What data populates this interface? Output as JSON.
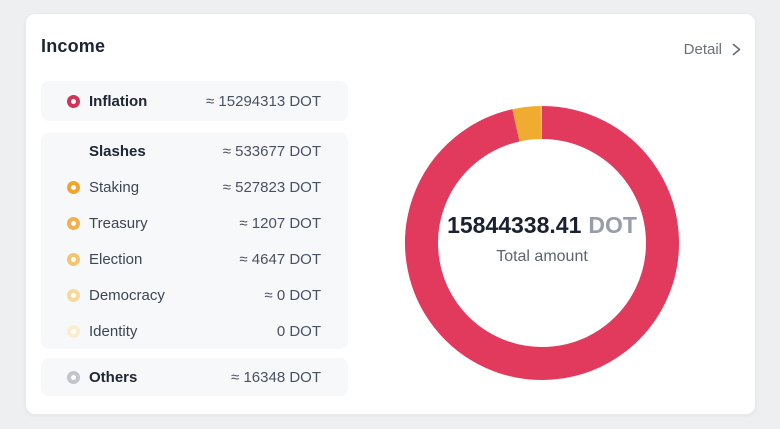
{
  "card": {
    "title": "Income",
    "detail_label": "Detail"
  },
  "legend": {
    "groups": [
      {
        "items": [
          {
            "label": "Inflation",
            "bold": true,
            "bullet_color": "#d23457",
            "value": "≈ 15294313 DOT"
          }
        ]
      },
      {
        "items": [
          {
            "label": "Slashes",
            "bold": true,
            "bullet_color": null,
            "value": "≈ 533677 DOT"
          },
          {
            "label": "Staking",
            "bold": false,
            "bullet_color": "#efa52d",
            "value": "≈ 527823 DOT"
          },
          {
            "label": "Treasury",
            "bold": false,
            "bullet_color": "#f0b050",
            "value": "≈ 1207 DOT"
          },
          {
            "label": "Election",
            "bold": false,
            "bullet_color": "#f3c570",
            "value": "≈ 4647 DOT"
          },
          {
            "label": "Democracy",
            "bold": false,
            "bullet_color": "#f7d99b",
            "value": "≈ 0 DOT"
          },
          {
            "label": "Identity",
            "bold": false,
            "bullet_color": "#fbeecf",
            "value": "0 DOT"
          }
        ]
      },
      {
        "items": [
          {
            "label": "Others",
            "bold": true,
            "bullet_color": "#c2c6cc",
            "value": "≈ 16348 DOT"
          }
        ]
      }
    ]
  },
  "chart_data": {
    "type": "pie",
    "donut": true,
    "title": "Income",
    "labels": [
      "Inflation",
      "Staking",
      "Treasury",
      "Election",
      "Democracy",
      "Identity",
      "Others"
    ],
    "values": [
      15294313,
      527823,
      1207,
      4647,
      0,
      0,
      16348
    ],
    "colors": [
      "#e13a5c",
      "#f0ab31",
      "#f0b050",
      "#f3c570",
      "#f7d99b",
      "#fbeecf",
      "#c2c6cc"
    ],
    "total": 15844338.41,
    "unit": "DOT",
    "start_angle_deg": -90,
    "direction": "clockwise",
    "legend_position": "left",
    "center_label": {
      "amount": "15844338.41",
      "unit": "DOT",
      "caption": "Total amount"
    }
  },
  "ui_colors": {
    "page_background": "#edeff1",
    "card_background": "#ffffff",
    "group_background": "#f7f8f9",
    "accent_red": "#e13a5c",
    "accent_amber": "#f0ab31"
  }
}
